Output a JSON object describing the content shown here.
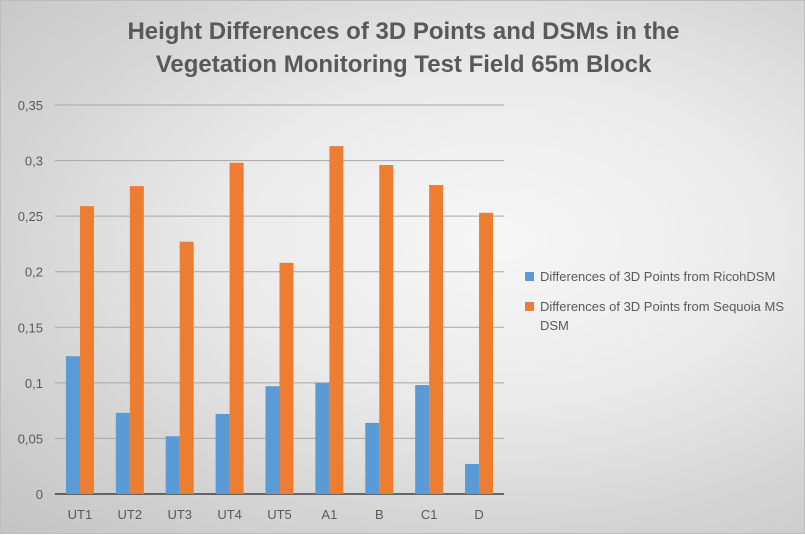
{
  "chart_data": {
    "type": "bar",
    "title_line1": "Height Differences of 3D Points and DSMs in the",
    "title_line2": "Vegetation Monitoring Test Field 65m Block",
    "categories": [
      "UT1",
      "UT2",
      "UT3",
      "UT4",
      "UT5",
      "A1",
      "B",
      "C1",
      "D"
    ],
    "series": [
      {
        "name": "Differences of 3D Points from RicohDSM",
        "color": "#5b9bd5",
        "values": [
          0.124,
          0.073,
          0.052,
          0.072,
          0.097,
          0.1,
          0.064,
          0.098,
          0.027
        ]
      },
      {
        "name": "Differences of 3D Points from Sequoia MS DSM",
        "color": "#ed7d31",
        "values": [
          0.259,
          0.277,
          0.227,
          0.298,
          0.208,
          0.313,
          0.296,
          0.278,
          0.253
        ]
      }
    ],
    "y_ticks": [
      "0",
      "0,05",
      "0,1",
      "0,15",
      "0,2",
      "0,25",
      "0,3",
      "0,35"
    ],
    "ylim": [
      0,
      0.35
    ],
    "y_step": 0.05,
    "grid": true,
    "legend_position": "right",
    "gridline_color": "#a6a6a6",
    "text_color": "#595959"
  }
}
